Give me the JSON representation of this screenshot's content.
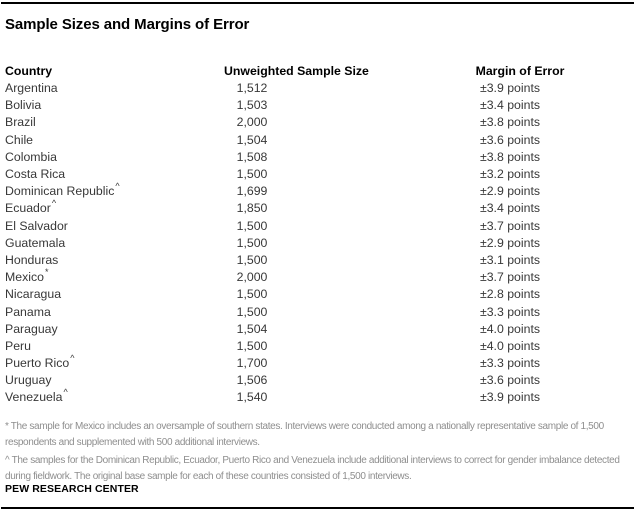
{
  "chart_data": {
    "type": "table",
    "title": "Sample Sizes and Margins of Error",
    "columns": [
      "Country",
      "Unweighted Sample Size",
      "Margin of Error"
    ],
    "rows": [
      {
        "country": "Argentina",
        "marker": "",
        "sample_size": "1,512",
        "margin_of_error": "±3.9 points"
      },
      {
        "country": "Bolivia",
        "marker": "",
        "sample_size": "1,503",
        "margin_of_error": "±3.4 points"
      },
      {
        "country": "Brazil",
        "marker": "",
        "sample_size": "2,000",
        "margin_of_error": "±3.8 points"
      },
      {
        "country": "Chile",
        "marker": "",
        "sample_size": "1,504",
        "margin_of_error": "±3.6 points"
      },
      {
        "country": "Colombia",
        "marker": "",
        "sample_size": "1,508",
        "margin_of_error": "±3.8 points"
      },
      {
        "country": "Costa Rica",
        "marker": "",
        "sample_size": "1,500",
        "margin_of_error": "±3.2 points"
      },
      {
        "country": "Dominican Republic",
        "marker": "^",
        "sample_size": "1,699",
        "margin_of_error": "±2.9 points"
      },
      {
        "country": "Ecuador",
        "marker": "^",
        "sample_size": "1,850",
        "margin_of_error": "±3.4 points"
      },
      {
        "country": "El Salvador",
        "marker": "",
        "sample_size": "1,500",
        "margin_of_error": "±3.7 points"
      },
      {
        "country": "Guatemala",
        "marker": "",
        "sample_size": "1,500",
        "margin_of_error": "±2.9 points"
      },
      {
        "country": "Honduras",
        "marker": "",
        "sample_size": "1,500",
        "margin_of_error": "±3.1 points"
      },
      {
        "country": "Mexico",
        "marker": "*",
        "sample_size": "2,000",
        "margin_of_error": "±3.7 points"
      },
      {
        "country": "Nicaragua",
        "marker": "",
        "sample_size": "1,500",
        "margin_of_error": "±2.8 points"
      },
      {
        "country": "Panama",
        "marker": "",
        "sample_size": "1,500",
        "margin_of_error": "±3.3 points"
      },
      {
        "country": "Paraguay",
        "marker": "",
        "sample_size": "1,504",
        "margin_of_error": "±4.0 points"
      },
      {
        "country": "Peru",
        "marker": "",
        "sample_size": "1,500",
        "margin_of_error": "±4.0 points"
      },
      {
        "country": "Puerto Rico",
        "marker": "^",
        "sample_size": "1,700",
        "margin_of_error": "±3.3 points"
      },
      {
        "country": "Uruguay",
        "marker": "",
        "sample_size": "1,506",
        "margin_of_error": "±3.6 points"
      },
      {
        "country": "Venezuela",
        "marker": "^",
        "sample_size": "1,540",
        "margin_of_error": "±3.9 points"
      }
    ],
    "footnotes": [
      "* The sample for Mexico includes an oversample of southern states. Interviews were conducted among a nationally representative sample of 1,500 respondents and supplemented with 500 additional interviews.",
      "^ The samples for the Dominican Republic, Ecuador, Puerto Rico and Venezuela include additional interviews to correct for gender imbalance detected during fieldwork. The original base sample for each of these countries consisted of 1,500 interviews."
    ],
    "source": "PEW RESEARCH CENTER"
  },
  "colors": {
    "background": "#ffffff",
    "rule": "#000000",
    "title_text": "#000000",
    "header_text": "#000000",
    "row_text": "#383838",
    "footnote_text": "#8e8e8e"
  }
}
